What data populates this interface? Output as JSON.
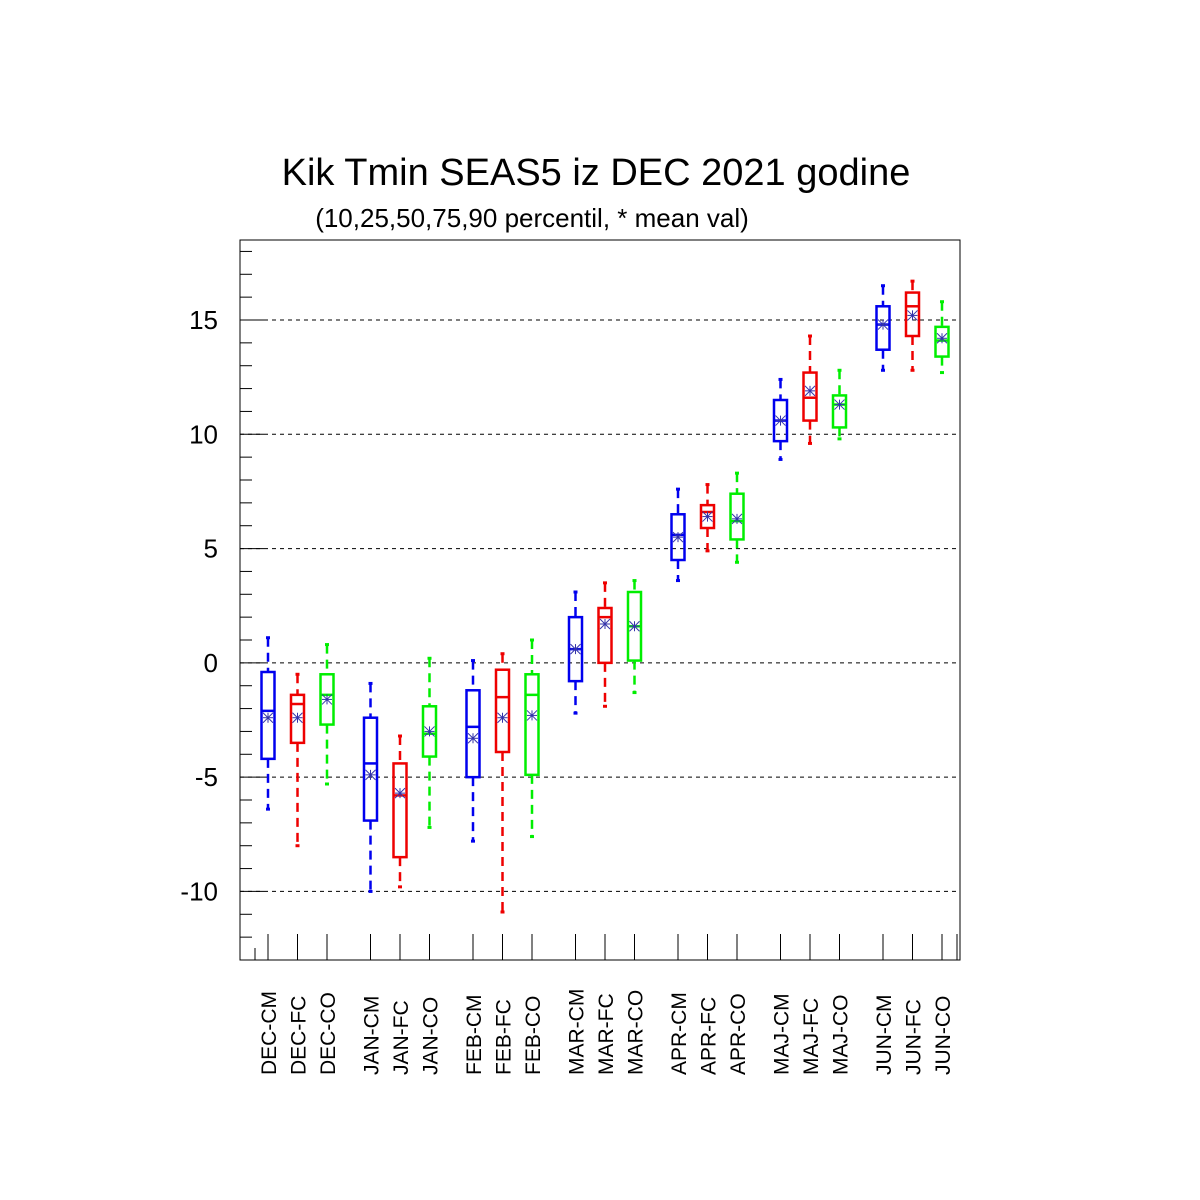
{
  "chart_data": {
    "type": "box",
    "title": "Kik Tmin SEAS5 iz DEC 2021 godine",
    "subtitle": "(10,25,50,75,90 percentil, * mean val)",
    "ylim": [
      -13,
      18.5
    ],
    "yticks": [
      15,
      10,
      5,
      0,
      -5,
      -10
    ],
    "grid": "dashed horizontal at major ticks",
    "series_colors": {
      "CM": "#0000ee",
      "FC": "#ee0000",
      "CO": "#00ee00"
    },
    "categories": [
      "DEC-CM",
      "DEC-FC",
      "DEC-CO",
      "JAN-CM",
      "JAN-FC",
      "JAN-CO",
      "FEB-CM",
      "FEB-FC",
      "FEB-CO",
      "MAR-CM",
      "MAR-FC",
      "MAR-CO",
      "APR-CM",
      "APR-FC",
      "APR-CO",
      "MAJ-CM",
      "MAJ-FC",
      "MAJ-CO",
      "JUN-CM",
      "JUN-FC",
      "JUN-CO"
    ],
    "boxes": [
      {
        "p10": -6.4,
        "p25": -4.2,
        "p50": -2.1,
        "p75": -0.4,
        "p90": 1.1,
        "mean": -2.4
      },
      {
        "p10": -8.0,
        "p25": -3.5,
        "p50": -1.8,
        "p75": -1.4,
        "p90": -0.5,
        "mean": -2.4
      },
      {
        "p10": -5.3,
        "p25": -2.7,
        "p50": -1.4,
        "p75": -0.5,
        "p90": 0.8,
        "mean": -1.6
      },
      {
        "p10": -10.0,
        "p25": -6.9,
        "p50": -4.4,
        "p75": -2.4,
        "p90": -0.9,
        "mean": -4.9
      },
      {
        "p10": -9.8,
        "p25": -8.5,
        "p50": -5.8,
        "p75": -4.4,
        "p90": -3.2,
        "mean": -5.7
      },
      {
        "p10": -7.2,
        "p25": -4.1,
        "p50": -3.1,
        "p75": -1.9,
        "p90": 0.2,
        "mean": -3.0
      },
      {
        "p10": -7.8,
        "p25": -5.0,
        "p50": -2.8,
        "p75": -1.2,
        "p90": 0.1,
        "mean": -3.3
      },
      {
        "p10": -10.9,
        "p25": -3.9,
        "p50": -1.5,
        "p75": -0.3,
        "p90": 0.4,
        "mean": -2.4
      },
      {
        "p10": -7.6,
        "p25": -4.9,
        "p50": -1.4,
        "p75": -0.5,
        "p90": 1.0,
        "mean": -2.3
      },
      {
        "p10": -2.2,
        "p25": -0.8,
        "p50": 0.6,
        "p75": 2.0,
        "p90": 3.1,
        "mean": 0.6
      },
      {
        "p10": -1.9,
        "p25": 0.0,
        "p50": 2.0,
        "p75": 2.4,
        "p90": 3.5,
        "mean": 1.7
      },
      {
        "p10": -1.3,
        "p25": 0.1,
        "p50": 1.6,
        "p75": 3.1,
        "p90": 3.6,
        "mean": 1.6
      },
      {
        "p10": 3.6,
        "p25": 4.5,
        "p50": 5.6,
        "p75": 6.5,
        "p90": 7.6,
        "mean": 5.5
      },
      {
        "p10": 4.9,
        "p25": 5.9,
        "p50": 6.6,
        "p75": 6.9,
        "p90": 7.8,
        "mean": 6.4
      },
      {
        "p10": 4.4,
        "p25": 5.4,
        "p50": 6.2,
        "p75": 7.4,
        "p90": 8.3,
        "mean": 6.3
      },
      {
        "p10": 8.9,
        "p25": 9.7,
        "p50": 10.6,
        "p75": 11.5,
        "p90": 12.4,
        "mean": 10.6
      },
      {
        "p10": 9.6,
        "p25": 10.6,
        "p50": 11.6,
        "p75": 12.7,
        "p90": 14.3,
        "mean": 11.9
      },
      {
        "p10": 9.8,
        "p25": 10.3,
        "p50": 11.3,
        "p75": 11.7,
        "p90": 12.8,
        "mean": 11.3
      },
      {
        "p10": 12.8,
        "p25": 13.7,
        "p50": 14.8,
        "p75": 15.6,
        "p90": 16.5,
        "mean": 14.8
      },
      {
        "p10": 12.8,
        "p25": 14.3,
        "p50": 15.6,
        "p75": 16.2,
        "p90": 16.7,
        "mean": 15.2
      },
      {
        "p10": 12.7,
        "p25": 13.4,
        "p50": 14.1,
        "p75": 14.7,
        "p90": 15.8,
        "mean": 14.2
      }
    ]
  }
}
